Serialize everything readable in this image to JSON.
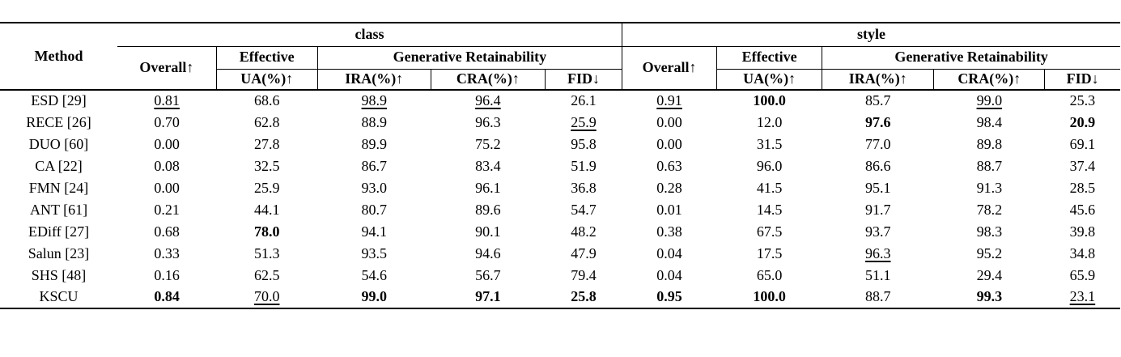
{
  "table": {
    "col_headers": {
      "method": "Method",
      "group_class": "class",
      "group_style": "style",
      "overall": "Overall↑",
      "effective": "Effective",
      "generative_retainability": "Generative Retainability",
      "ua": "UA(%)↑",
      "ira": "IRA(%)↑",
      "cra": "CRA(%)↑",
      "fid": "FID↓"
    },
    "rows": [
      {
        "method": "ESD [29]",
        "class": [
          {
            "v": "0.81",
            "fmt": "underline"
          },
          {
            "v": "68.6",
            "fmt": "plain"
          },
          {
            "v": "98.9",
            "fmt": "underline"
          },
          {
            "v": "96.4",
            "fmt": "underline"
          },
          {
            "v": "26.1",
            "fmt": "plain"
          }
        ],
        "style": [
          {
            "v": "0.91",
            "fmt": "underline"
          },
          {
            "v": "100.0",
            "fmt": "bold"
          },
          {
            "v": "85.7",
            "fmt": "plain"
          },
          {
            "v": "99.0",
            "fmt": "underline"
          },
          {
            "v": "25.3",
            "fmt": "plain"
          }
        ]
      },
      {
        "method": "RECE [26]",
        "class": [
          {
            "v": "0.70",
            "fmt": "plain"
          },
          {
            "v": "62.8",
            "fmt": "plain"
          },
          {
            "v": "88.9",
            "fmt": "plain"
          },
          {
            "v": "96.3",
            "fmt": "plain"
          },
          {
            "v": "25.9",
            "fmt": "underline"
          }
        ],
        "style": [
          {
            "v": "0.00",
            "fmt": "plain"
          },
          {
            "v": "12.0",
            "fmt": "plain"
          },
          {
            "v": "97.6",
            "fmt": "bold"
          },
          {
            "v": "98.4",
            "fmt": "plain"
          },
          {
            "v": "20.9",
            "fmt": "bold"
          }
        ]
      },
      {
        "method": "DUO [60]",
        "class": [
          {
            "v": "0.00",
            "fmt": "plain"
          },
          {
            "v": "27.8",
            "fmt": "plain"
          },
          {
            "v": "89.9",
            "fmt": "plain"
          },
          {
            "v": "75.2",
            "fmt": "plain"
          },
          {
            "v": "95.8",
            "fmt": "plain"
          }
        ],
        "style": [
          {
            "v": "0.00",
            "fmt": "plain"
          },
          {
            "v": "31.5",
            "fmt": "plain"
          },
          {
            "v": "77.0",
            "fmt": "plain"
          },
          {
            "v": "89.8",
            "fmt": "plain"
          },
          {
            "v": "69.1",
            "fmt": "plain"
          }
        ]
      },
      {
        "method": "CA [22]",
        "class": [
          {
            "v": "0.08",
            "fmt": "plain"
          },
          {
            "v": "32.5",
            "fmt": "plain"
          },
          {
            "v": "86.7",
            "fmt": "plain"
          },
          {
            "v": "83.4",
            "fmt": "plain"
          },
          {
            "v": "51.9",
            "fmt": "plain"
          }
        ],
        "style": [
          {
            "v": "0.63",
            "fmt": "plain"
          },
          {
            "v": "96.0",
            "fmt": "plain"
          },
          {
            "v": "86.6",
            "fmt": "plain"
          },
          {
            "v": "88.7",
            "fmt": "plain"
          },
          {
            "v": "37.4",
            "fmt": "plain"
          }
        ]
      },
      {
        "method": "FMN [24]",
        "class": [
          {
            "v": "0.00",
            "fmt": "plain"
          },
          {
            "v": "25.9",
            "fmt": "plain"
          },
          {
            "v": "93.0",
            "fmt": "plain"
          },
          {
            "v": "96.1",
            "fmt": "plain"
          },
          {
            "v": "36.8",
            "fmt": "plain"
          }
        ],
        "style": [
          {
            "v": "0.28",
            "fmt": "plain"
          },
          {
            "v": "41.5",
            "fmt": "plain"
          },
          {
            "v": "95.1",
            "fmt": "plain"
          },
          {
            "v": "91.3",
            "fmt": "plain"
          },
          {
            "v": "28.5",
            "fmt": "plain"
          }
        ]
      },
      {
        "method": "ANT [61]",
        "class": [
          {
            "v": "0.21",
            "fmt": "plain"
          },
          {
            "v": "44.1",
            "fmt": "plain"
          },
          {
            "v": "80.7",
            "fmt": "plain"
          },
          {
            "v": "89.6",
            "fmt": "plain"
          },
          {
            "v": "54.7",
            "fmt": "plain"
          }
        ],
        "style": [
          {
            "v": "0.01",
            "fmt": "plain"
          },
          {
            "v": "14.5",
            "fmt": "plain"
          },
          {
            "v": "91.7",
            "fmt": "plain"
          },
          {
            "v": "78.2",
            "fmt": "plain"
          },
          {
            "v": "45.6",
            "fmt": "plain"
          }
        ]
      },
      {
        "method": "EDiff [27]",
        "class": [
          {
            "v": "0.68",
            "fmt": "plain"
          },
          {
            "v": "78.0",
            "fmt": "bold"
          },
          {
            "v": "94.1",
            "fmt": "plain"
          },
          {
            "v": "90.1",
            "fmt": "plain"
          },
          {
            "v": "48.2",
            "fmt": "plain"
          }
        ],
        "style": [
          {
            "v": "0.38",
            "fmt": "plain"
          },
          {
            "v": "67.5",
            "fmt": "plain"
          },
          {
            "v": "93.7",
            "fmt": "plain"
          },
          {
            "v": "98.3",
            "fmt": "plain"
          },
          {
            "v": "39.8",
            "fmt": "plain"
          }
        ]
      },
      {
        "method": "Salun [23]",
        "class": [
          {
            "v": "0.33",
            "fmt": "plain"
          },
          {
            "v": "51.3",
            "fmt": "plain"
          },
          {
            "v": "93.5",
            "fmt": "plain"
          },
          {
            "v": "94.6",
            "fmt": "plain"
          },
          {
            "v": "47.9",
            "fmt": "plain"
          }
        ],
        "style": [
          {
            "v": "0.04",
            "fmt": "plain"
          },
          {
            "v": "17.5",
            "fmt": "plain"
          },
          {
            "v": "96.3",
            "fmt": "underline"
          },
          {
            "v": "95.2",
            "fmt": "plain"
          },
          {
            "v": "34.8",
            "fmt": "plain"
          }
        ]
      },
      {
        "method": "SHS [48]",
        "class": [
          {
            "v": "0.16",
            "fmt": "plain"
          },
          {
            "v": "62.5",
            "fmt": "plain"
          },
          {
            "v": "54.6",
            "fmt": "plain"
          },
          {
            "v": "56.7",
            "fmt": "plain"
          },
          {
            "v": "79.4",
            "fmt": "plain"
          }
        ],
        "style": [
          {
            "v": "0.04",
            "fmt": "plain"
          },
          {
            "v": "65.0",
            "fmt": "plain"
          },
          {
            "v": "51.1",
            "fmt": "plain"
          },
          {
            "v": "29.4",
            "fmt": "plain"
          },
          {
            "v": "65.9",
            "fmt": "plain"
          }
        ]
      },
      {
        "method": "KSCU",
        "class": [
          {
            "v": "0.84",
            "fmt": "bold"
          },
          {
            "v": "70.0",
            "fmt": "underline"
          },
          {
            "v": "99.0",
            "fmt": "bold"
          },
          {
            "v": "97.1",
            "fmt": "bold"
          },
          {
            "v": "25.8",
            "fmt": "bold"
          }
        ],
        "style": [
          {
            "v": "0.95",
            "fmt": "bold"
          },
          {
            "v": "100.0",
            "fmt": "bold"
          },
          {
            "v": "88.7",
            "fmt": "plain"
          },
          {
            "v": "99.3",
            "fmt": "bold"
          },
          {
            "v": "23.1",
            "fmt": "underline"
          }
        ]
      }
    ]
  }
}
